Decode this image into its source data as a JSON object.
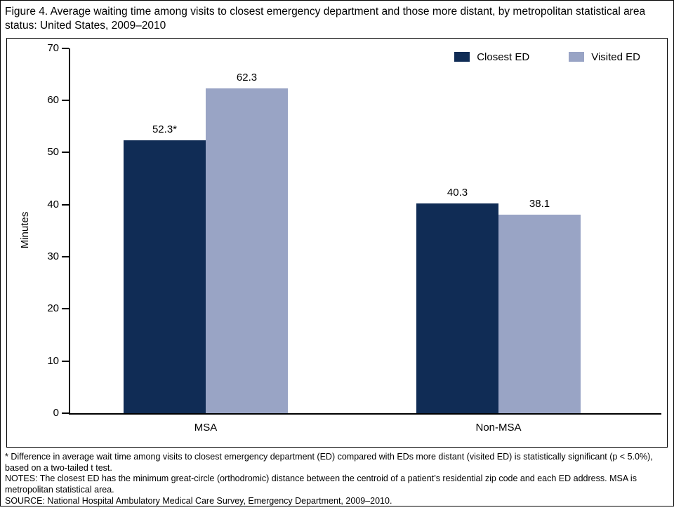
{
  "title": "Figure 4. Average waiting time among visits to closest emergency department and those more distant, by metropolitan statistical area status: United States, 2009–2010",
  "chart_data": {
    "type": "bar",
    "categories": [
      "MSA",
      "Non-MSA"
    ],
    "series": [
      {
        "name": "Closest ED",
        "color": "#102c55",
        "values": [
          52.3,
          40.3
        ],
        "labels": [
          "52.3*",
          "40.3"
        ]
      },
      {
        "name": "Visited ED",
        "color": "#99a4c5",
        "values": [
          62.3,
          38.1
        ],
        "labels": [
          "62.3",
          "38.1"
        ]
      }
    ],
    "title": "",
    "xlabel": "",
    "ylabel": "Minutes",
    "ylim": [
      0,
      70
    ],
    "ytick_step": 10,
    "grid": false,
    "legend_position": "top-right"
  },
  "footnotes": [
    "* Difference in average wait time among visits to closest emergency department (ED) compared with EDs more distant (visited ED) is statistically significant (p < 5.0%), based on a two-tailed t test.",
    "NOTES: The closest ED has the minimum great-circle (orthodromic) distance between the centroid of a patient’s residential zip code and each ED address. MSA is metropolitan statistical area.",
    "SOURCE: National Hospital Ambulatory Medical Care Survey, Emergency Department, 2009–2010."
  ]
}
